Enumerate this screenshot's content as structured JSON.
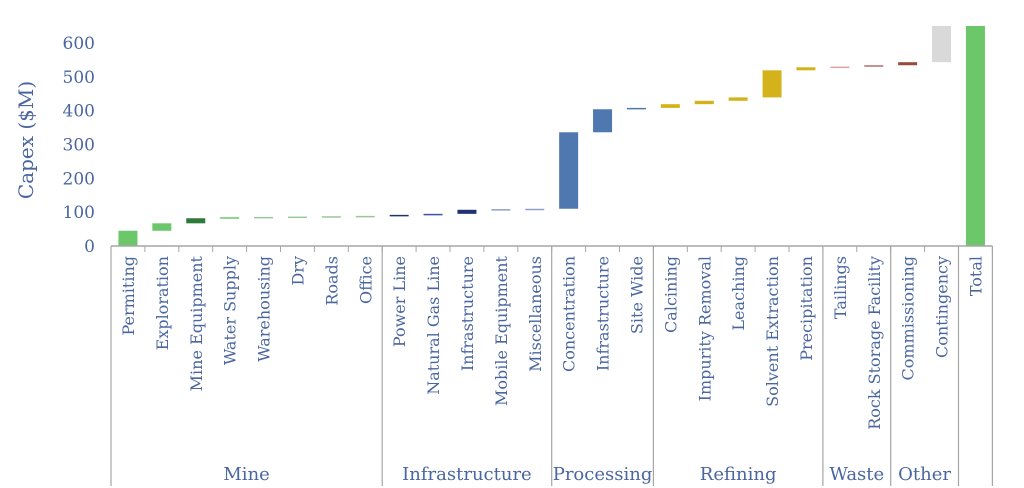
{
  "chart_data": {
    "type": "waterfall",
    "ylabel": "Capex ($M)",
    "ylim": [
      0,
      650
    ],
    "yticks": [
      0,
      100,
      200,
      300,
      400,
      500,
      600
    ],
    "grid": false,
    "groups": [
      {
        "name": "Mine",
        "count": 8
      },
      {
        "name": "Infrastructure",
        "count": 5
      },
      {
        "name": "Processing",
        "count": 3
      },
      {
        "name": "Refining",
        "count": 5
      },
      {
        "name": "Waste",
        "count": 2
      },
      {
        "name": "Other",
        "count": 2
      },
      {
        "name": "",
        "count": 1
      }
    ],
    "bars": [
      {
        "label": "Permiting",
        "base": 0,
        "value": 45,
        "color": "#6cc66a"
      },
      {
        "label": "Exploration",
        "base": 45,
        "value": 22,
        "color": "#6cc66a"
      },
      {
        "label": "Mine Equipment",
        "base": 67,
        "value": 15,
        "color": "#2f7a3a"
      },
      {
        "label": "Water Supply",
        "base": 82,
        "value": 3,
        "color": "#6cc66a"
      },
      {
        "label": "Warehousing",
        "base": 85,
        "value": 1,
        "color": "#9cc79a"
      },
      {
        "label": "Dry",
        "base": 86,
        "value": 1,
        "color": "#9cc79a"
      },
      {
        "label": "Roads",
        "base": 87,
        "value": 1,
        "color": "#9cc79a"
      },
      {
        "label": "Office",
        "base": 88,
        "value": 1,
        "color": "#9cc79a"
      },
      {
        "label": "Power Line",
        "base": 89,
        "value": 3,
        "color": "#1f3370"
      },
      {
        "label": "Natural Gas Line",
        "base": 92,
        "value": 3,
        "color": "#3b52a0"
      },
      {
        "label": "Infrastructure",
        "base": 95,
        "value": 12,
        "color": "#1f3370"
      },
      {
        "label": "Mobile Equipment",
        "base": 107,
        "value": 2,
        "color": "#8fa0c8"
      },
      {
        "label": "Miscellaneous",
        "base": 109,
        "value": 1,
        "color": "#8fa0c8"
      },
      {
        "label": "Concentration",
        "base": 110,
        "value": 226,
        "color": "#4f78b0"
      },
      {
        "label": "Infrastructure",
        "base": 336,
        "value": 68,
        "color": "#4f78b0"
      },
      {
        "label": "Site Wide",
        "base": 404,
        "value": 4,
        "color": "#4f78b0"
      },
      {
        "label": "Calcining",
        "base": 408,
        "value": 11,
        "color": "#d4b21c"
      },
      {
        "label": "Impurity Removal",
        "base": 419,
        "value": 10,
        "color": "#d4b21c"
      },
      {
        "label": "Leaching",
        "base": 429,
        "value": 10,
        "color": "#d4b21c"
      },
      {
        "label": "Solvent Extraction",
        "base": 439,
        "value": 80,
        "color": "#d4b21c"
      },
      {
        "label": "Precipitation",
        "base": 519,
        "value": 9,
        "color": "#d4b21c"
      },
      {
        "label": "Tailings",
        "base": 528,
        "value": 2,
        "color": "#e0a0a0"
      },
      {
        "label": "Rock Storage Facility",
        "base": 530,
        "value": 4,
        "color": "#b07070"
      },
      {
        "label": "Commissioning",
        "base": 534,
        "value": 9,
        "color": "#9a4a3a"
      },
      {
        "label": "Contingency",
        "base": 543,
        "value": 107,
        "color": "#d9d9d9"
      },
      {
        "label": "Total",
        "base": 0,
        "value": 650,
        "color": "#6cc66a"
      }
    ]
  }
}
